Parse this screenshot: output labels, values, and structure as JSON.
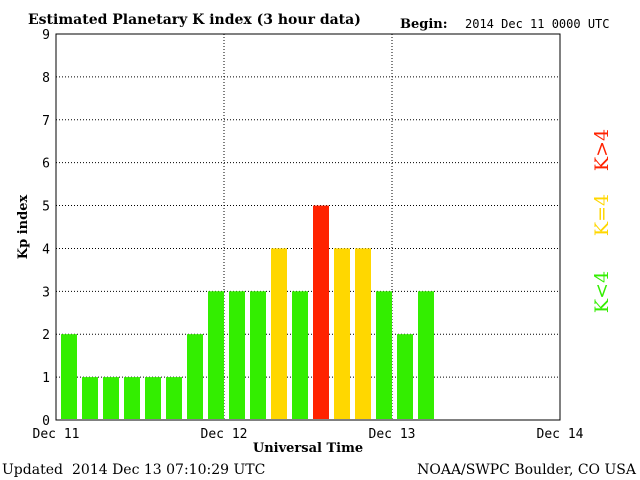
{
  "header": {
    "title": "Estimated Planetary K index (3 hour data)",
    "begin_label": "Begin:",
    "begin_value": "2014 Dec 11 0000 UTC"
  },
  "footer": {
    "updated_label": "Updated",
    "updated_value": "2014 Dec 13 07:10:29 UTC",
    "credit": "NOAA/SWPC Boulder, CO USA"
  },
  "legend": {
    "items": [
      {
        "label": "K<4",
        "color": "#33ee00"
      },
      {
        "label": "K=4",
        "color": "#ffd700"
      },
      {
        "label": "K>4",
        "color": "#ff2200"
      }
    ]
  },
  "colors": {
    "below4": "#33ee00",
    "equal4": "#ffd700",
    "above4": "#ff2200"
  },
  "chart_data": {
    "type": "bar",
    "title": "Estimated Planetary K index (3 hour data)",
    "xlabel": "Universal Time",
    "ylabel": "Kp index",
    "ylim": [
      0,
      9
    ],
    "yticks": [
      "0",
      "1",
      "2",
      "3",
      "4",
      "5",
      "6",
      "7",
      "8",
      "9"
    ],
    "xticks": [
      "Dec 11",
      "Dec 12",
      "Dec 13",
      "Dec 14"
    ],
    "slots_total": 24,
    "values": [
      2,
      1,
      1,
      1,
      1,
      1,
      2,
      3,
      3,
      3,
      4,
      3,
      5,
      4,
      4,
      3,
      2,
      3
    ],
    "grid": true,
    "legend_position": "right"
  }
}
